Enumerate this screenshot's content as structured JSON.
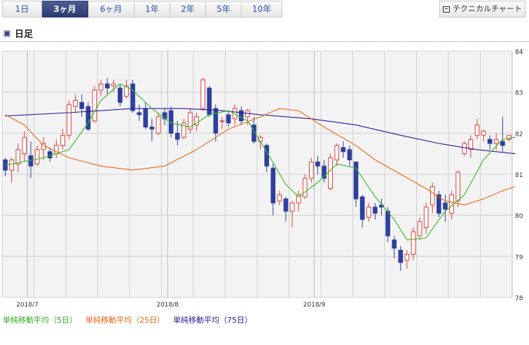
{
  "tabs": [
    {
      "label": "1日"
    },
    {
      "label": "3ヶ月"
    },
    {
      "label": "6ヶ月"
    },
    {
      "label": "1年"
    },
    {
      "label": "2年"
    },
    {
      "label": "5年"
    },
    {
      "label": "10年"
    }
  ],
  "active_tab_index": 1,
  "tech_button": {
    "label": "テクニカルチャート",
    "icon": "chart-window-icon"
  },
  "heading": {
    "label": "日足",
    "icon": "square-icon"
  },
  "colors": {
    "up": "#d9413a",
    "down": "#2f3f9e",
    "ma5": "#33bb22",
    "ma25": "#ee6611",
    "ma75": "#2a1a99",
    "grid": "#d0d0d0",
    "plot_bg": "#f3f3f3"
  },
  "chart_data": {
    "type": "candlestick",
    "ylim": [
      78,
      84
    ],
    "y_ticks": [
      "84",
      "83",
      "82",
      "81",
      "80",
      "79",
      "78"
    ],
    "x_labels": [
      {
        "label": "2018/7",
        "index": 0
      },
      {
        "label": "2018/8",
        "index": 22
      },
      {
        "label": "2018/9",
        "index": 45
      }
    ],
    "candles": [
      [
        81.35,
        81.1,
        80.95,
        81.4
      ],
      [
        81.1,
        81.35,
        80.8,
        81.4
      ],
      [
        81.25,
        81.6,
        81.05,
        81.75
      ],
      [
        81.5,
        81.9,
        81.3,
        82.05
      ],
      [
        81.45,
        81.2,
        80.9,
        81.8
      ],
      [
        81.25,
        81.6,
        81.2,
        81.7
      ],
      [
        81.6,
        81.75,
        81.35,
        81.9
      ],
      [
        81.55,
        81.4,
        81.3,
        81.65
      ],
      [
        81.5,
        81.7,
        81.4,
        81.85
      ],
      [
        81.7,
        81.95,
        81.6,
        82.1
      ],
      [
        81.95,
        82.7,
        81.85,
        82.8
      ],
      [
        82.65,
        82.8,
        82.5,
        82.95
      ],
      [
        82.75,
        82.6,
        82.4,
        82.95
      ],
      [
        82.65,
        82.1,
        82.05,
        82.75
      ],
      [
        82.3,
        83.05,
        82.25,
        83.15
      ],
      [
        83.05,
        83.2,
        82.9,
        83.3
      ],
      [
        83.2,
        83.1,
        82.95,
        83.35
      ],
      [
        83.15,
        83.2,
        83.0,
        83.3
      ],
      [
        83.1,
        82.75,
        82.65,
        83.2
      ],
      [
        82.9,
        83.15,
        82.85,
        83.3
      ],
      [
        83.2,
        82.55,
        82.5,
        83.3
      ],
      [
        82.5,
        82.45,
        82.3,
        82.7
      ],
      [
        82.6,
        82.15,
        82.1,
        82.75
      ],
      [
        82.15,
        82.1,
        81.8,
        82.35
      ],
      [
        82.0,
        82.4,
        81.95,
        82.5
      ],
      [
        82.5,
        82.35,
        82.2,
        82.6
      ],
      [
        82.55,
        82.0,
        81.9,
        82.65
      ],
      [
        82.0,
        81.85,
        81.7,
        82.3
      ],
      [
        81.9,
        82.25,
        81.85,
        82.35
      ],
      [
        82.1,
        82.5,
        82.0,
        82.6
      ],
      [
        82.2,
        82.4,
        82.05,
        82.5
      ],
      [
        82.6,
        83.3,
        82.55,
        83.35
      ],
      [
        83.1,
        82.45,
        82.4,
        83.15
      ],
      [
        82.6,
        82.0,
        81.8,
        82.7
      ],
      [
        82.3,
        82.3,
        82.1,
        82.4
      ],
      [
        82.45,
        82.25,
        82.15,
        82.55
      ],
      [
        82.35,
        82.6,
        82.2,
        82.7
      ],
      [
        82.55,
        82.3,
        82.2,
        82.65
      ],
      [
        82.4,
        82.55,
        82.2,
        82.6
      ],
      [
        82.2,
        81.8,
        81.75,
        82.4
      ],
      [
        81.8,
        81.9,
        81.6,
        81.95
      ],
      [
        81.7,
        81.2,
        81.05,
        81.75
      ],
      [
        81.15,
        80.3,
        80.0,
        81.25
      ],
      [
        80.35,
        80.5,
        80.25,
        80.6
      ],
      [
        80.4,
        80.1,
        79.85,
        80.45
      ],
      [
        80.1,
        80.3,
        79.7,
        80.35
      ],
      [
        80.3,
        80.5,
        80.1,
        80.6
      ],
      [
        80.45,
        80.9,
        80.4,
        81.0
      ],
      [
        80.9,
        81.3,
        80.8,
        81.4
      ],
      [
        81.3,
        81.2,
        81.0,
        81.45
      ],
      [
        81.2,
        80.9,
        80.8,
        81.35
      ],
      [
        80.65,
        81.4,
        80.6,
        81.5
      ],
      [
        81.35,
        81.7,
        81.2,
        81.75
      ],
      [
        81.65,
        81.55,
        81.4,
        81.8
      ],
      [
        81.6,
        81.35,
        81.2,
        81.7
      ],
      [
        81.3,
        80.4,
        80.2,
        81.3
      ],
      [
        80.45,
        79.9,
        79.7,
        80.5
      ],
      [
        79.95,
        80.2,
        79.85,
        80.3
      ],
      [
        80.2,
        80.05,
        79.9,
        80.3
      ],
      [
        80.25,
        80.2,
        80.0,
        80.4
      ],
      [
        80.1,
        79.5,
        79.35,
        80.2
      ],
      [
        79.4,
        79.2,
        78.95,
        79.5
      ],
      [
        79.15,
        78.85,
        78.65,
        79.25
      ],
      [
        78.9,
        79.05,
        78.7,
        79.15
      ],
      [
        79.05,
        79.6,
        78.9,
        79.7
      ],
      [
        79.5,
        79.85,
        79.4,
        79.95
      ],
      [
        79.7,
        80.2,
        79.55,
        80.3
      ],
      [
        80.25,
        80.7,
        80.05,
        80.8
      ],
      [
        80.5,
        80.05,
        79.95,
        80.6
      ],
      [
        80.3,
        80.15,
        79.85,
        80.5
      ],
      [
        80.05,
        80.5,
        79.9,
        80.6
      ],
      [
        80.35,
        81.05,
        80.2,
        81.1
      ],
      [
        81.5,
        81.75,
        81.45,
        81.8
      ],
      [
        81.6,
        81.85,
        81.4,
        81.95
      ],
      [
        81.95,
        82.2,
        81.85,
        82.35
      ],
      [
        81.95,
        82.05,
        81.8,
        82.1
      ],
      [
        81.85,
        81.75,
        81.6,
        81.95
      ],
      [
        81.75,
        81.85,
        81.6,
        82.0
      ],
      [
        81.8,
        81.7,
        81.55,
        82.4
      ],
      [
        81.85,
        81.95,
        81.8,
        81.95
      ]
    ],
    "ma5": [
      [
        0,
        81.22
      ],
      [
        6,
        81.4
      ],
      [
        10,
        81.6
      ],
      [
        13,
        82.25
      ],
      [
        15,
        82.8
      ],
      [
        18,
        83.2
      ],
      [
        20,
        83.05
      ],
      [
        23,
        82.6
      ],
      [
        26,
        82.25
      ],
      [
        29,
        82.15
      ],
      [
        32,
        82.45
      ],
      [
        35,
        82.55
      ],
      [
        38,
        82.3
      ],
      [
        41,
        81.55
      ],
      [
        44,
        80.75
      ],
      [
        46,
        80.45
      ],
      [
        49,
        80.8
      ],
      [
        52,
        81.25
      ],
      [
        55,
        81.15
      ],
      [
        58,
        80.45
      ],
      [
        61,
        79.9
      ],
      [
        63,
        79.4
      ],
      [
        66,
        79.45
      ],
      [
        69,
        80.1
      ],
      [
        72,
        80.5
      ],
      [
        75,
        81.35
      ],
      [
        78,
        81.85
      ],
      [
        80,
        81.9
      ]
    ],
    "ma25": [
      [
        0,
        82.45
      ],
      [
        3,
        82.2
      ],
      [
        6,
        81.7
      ],
      [
        10,
        81.4
      ],
      [
        15,
        81.2
      ],
      [
        20,
        81.1
      ],
      [
        25,
        81.2
      ],
      [
        30,
        81.6
      ],
      [
        35,
        82.1
      ],
      [
        40,
        82.4
      ],
      [
        43,
        82.6
      ],
      [
        46,
        82.55
      ],
      [
        50,
        82.15
      ],
      [
        55,
        81.7
      ],
      [
        58,
        81.35
      ],
      [
        62,
        81.0
      ],
      [
        66,
        80.65
      ],
      [
        69,
        80.35
      ],
      [
        72,
        80.25
      ],
      [
        75,
        80.4
      ],
      [
        78,
        80.6
      ],
      [
        80,
        80.7
      ]
    ],
    "ma75": [
      [
        0,
        82.42
      ],
      [
        10,
        82.5
      ],
      [
        20,
        82.6
      ],
      [
        28,
        82.6
      ],
      [
        34,
        82.55
      ],
      [
        40,
        82.45
      ],
      [
        48,
        82.35
      ],
      [
        55,
        82.2
      ],
      [
        62,
        81.95
      ],
      [
        68,
        81.75
      ],
      [
        74,
        81.6
      ],
      [
        80,
        81.5
      ]
    ]
  },
  "legend": [
    {
      "label": "単純移動平均（5日）",
      "color": "#33aa22"
    },
    {
      "label": "単純移動平均（25日）",
      "color": "#e8650f"
    },
    {
      "label": "単純移動平均（75日）",
      "color": "#2a1a99"
    }
  ]
}
